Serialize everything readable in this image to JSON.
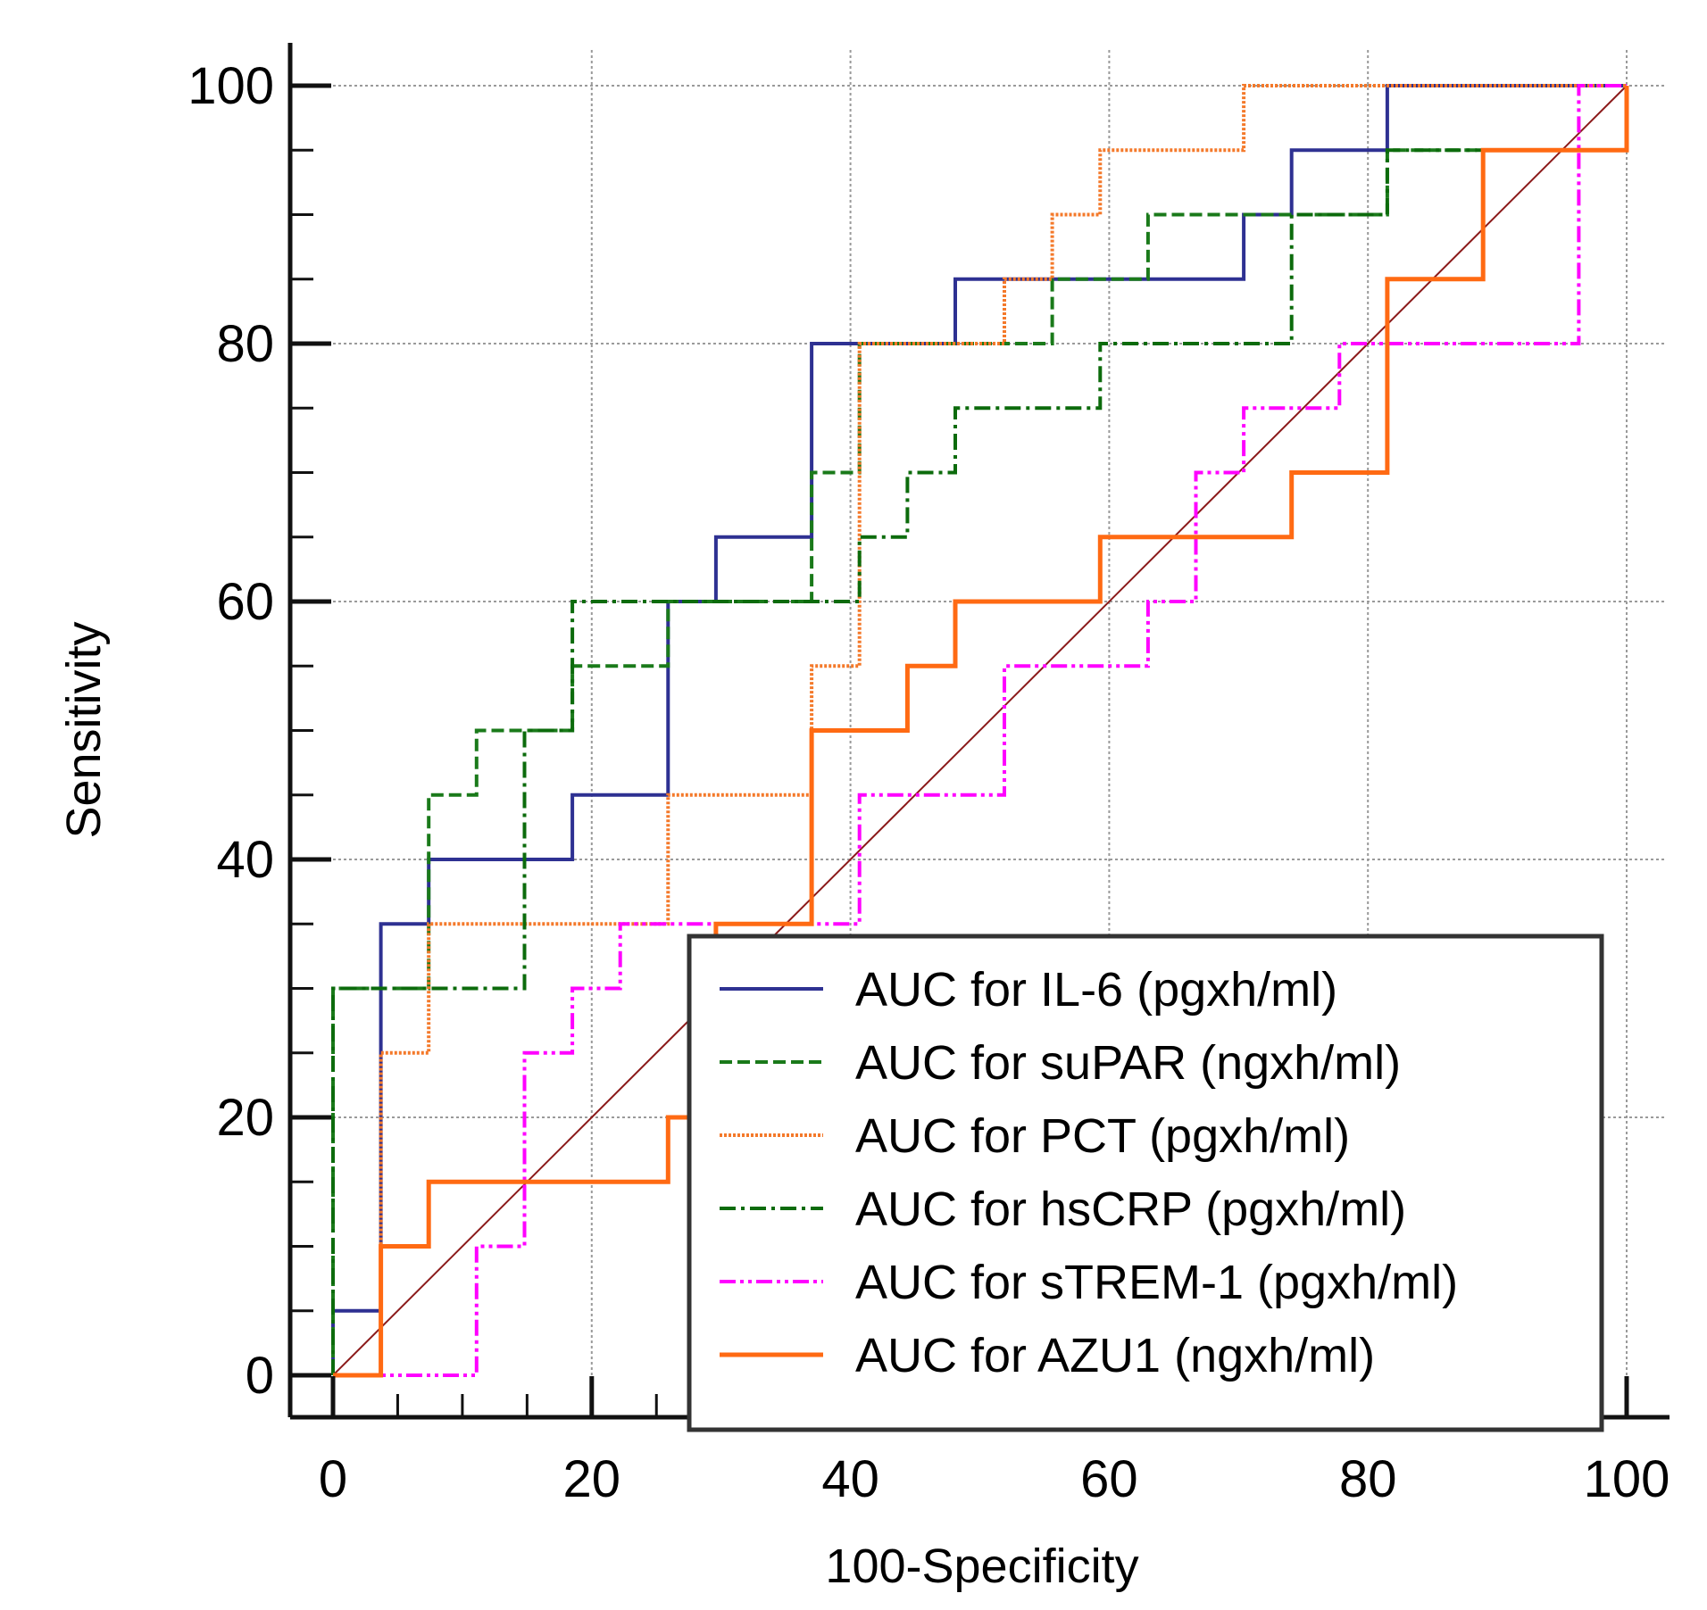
{
  "chart_data": {
    "type": "line",
    "title": "",
    "xlabel": "100-Specificity",
    "ylabel": "Sensitivity",
    "xlim": [
      0,
      100
    ],
    "ylim": [
      0,
      100
    ],
    "xticks": [
      0,
      20,
      40,
      60,
      80,
      100
    ],
    "yticks": [
      0,
      20,
      40,
      60,
      80,
      100
    ],
    "grid": true,
    "legend_position": "bottom-right",
    "reference_line": {
      "x": [
        0,
        100
      ],
      "y": [
        0,
        100
      ],
      "color": "#8b1a1a"
    },
    "series": [
      {
        "name": "AUC for IL-6 (pgxh/ml)",
        "color": "#2e3192",
        "dash": "solid",
        "x": [
          0,
          0,
          3.7,
          3.7,
          7.4,
          7.4,
          18.5,
          18.5,
          25.9,
          25.9,
          29.6,
          29.6,
          37,
          37,
          48.1,
          48.1,
          70.4,
          70.4,
          74.1,
          74.1,
          81.5,
          81.5,
          100
        ],
        "y": [
          0,
          5,
          5,
          35,
          35,
          40,
          40,
          45,
          45,
          60,
          60,
          65,
          65,
          80,
          80,
          85,
          85,
          90,
          90,
          95,
          95,
          100,
          100
        ]
      },
      {
        "name": "AUC for suPAR (ngxh/ml)",
        "color": "#1a7a1a",
        "dash": "dashed",
        "x": [
          0,
          0,
          7.4,
          7.4,
          11.1,
          11.1,
          18.5,
          18.5,
          25.9,
          25.9,
          37,
          37,
          40.7,
          40.7,
          55.6,
          55.6,
          63,
          63,
          74.1,
          74.1,
          81.5,
          81.5,
          100
        ],
        "y": [
          0,
          30,
          30,
          45,
          45,
          50,
          50,
          55,
          55,
          60,
          60,
          70,
          70,
          80,
          80,
          85,
          85,
          90,
          90,
          90,
          90,
          95,
          95
        ]
      },
      {
        "name": "AUC for PCT (pgxh/ml)",
        "color": "#f4792a",
        "dash": "dotted",
        "x": [
          0,
          3.7,
          3.7,
          7.4,
          7.4,
          25.9,
          25.9,
          37,
          37,
          40.7,
          40.7,
          51.9,
          51.9,
          55.6,
          55.6,
          59.3,
          59.3,
          70.4,
          70.4,
          100
        ],
        "y": [
          0,
          0,
          25,
          25,
          35,
          35,
          45,
          45,
          55,
          55,
          80,
          80,
          85,
          85,
          90,
          90,
          95,
          95,
          100,
          100
        ]
      },
      {
        "name": "AUC for hsCRP (pgxh/ml)",
        "color": "#0c6b0c",
        "dash": "dashdot",
        "x": [
          0,
          0,
          14.8,
          14.8,
          18.5,
          18.5,
          33.3,
          33.3,
          40.7,
          40.7,
          44.4,
          44.4,
          48.1,
          48.1,
          59.3,
          59.3,
          74.1,
          74.1,
          81.5,
          81.5,
          100
        ],
        "y": [
          0,
          30,
          30,
          50,
          50,
          60,
          60,
          60,
          60,
          65,
          65,
          70,
          70,
          75,
          75,
          80,
          80,
          90,
          90,
          95,
          95
        ]
      },
      {
        "name": "AUC for sTREM-1 (pgxh/ml)",
        "color": "#ff00ff",
        "dash": "dashdotdot",
        "x": [
          0,
          11.1,
          11.1,
          14.8,
          14.8,
          18.5,
          18.5,
          22.2,
          22.2,
          40.7,
          40.7,
          51.9,
          51.9,
          63,
          63,
          66.7,
          66.7,
          70.4,
          70.4,
          77.8,
          77.8,
          96.3,
          96.3,
          100
        ],
        "y": [
          0,
          0,
          10,
          10,
          25,
          25,
          30,
          30,
          35,
          35,
          45,
          45,
          55,
          55,
          60,
          60,
          70,
          70,
          75,
          75,
          80,
          80,
          100,
          100
        ]
      },
      {
        "name": "AUC for AZU1 (ngxh/ml)",
        "color": "#ff6a13",
        "dash": "solid",
        "x": [
          0,
          3.7,
          3.7,
          7.4,
          7.4,
          25.9,
          25.9,
          29.6,
          29.6,
          37,
          37,
          44.4,
          44.4,
          48.1,
          48.1,
          59.3,
          59.3,
          74.1,
          74.1,
          81.5,
          81.5,
          88.9,
          88.9,
          100,
          100
        ],
        "y": [
          0,
          0,
          10,
          10,
          15,
          15,
          20,
          20,
          35,
          35,
          50,
          50,
          55,
          55,
          60,
          60,
          65,
          65,
          70,
          70,
          85,
          85,
          95,
          95,
          100
        ]
      }
    ]
  }
}
